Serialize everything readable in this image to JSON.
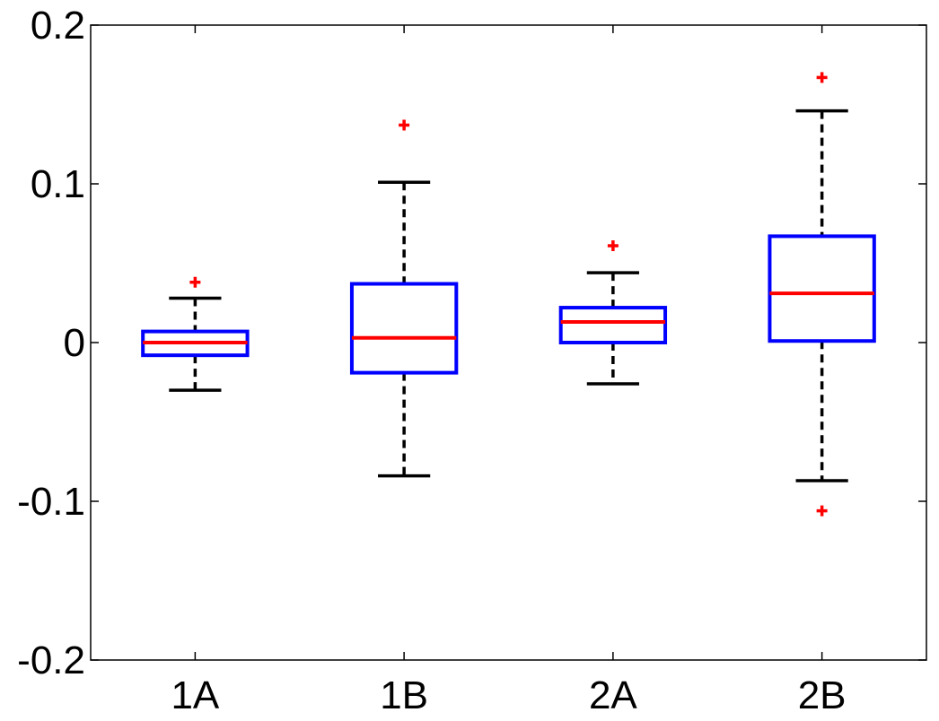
{
  "chart_data": {
    "type": "box",
    "categories": [
      "1A",
      "1B",
      "2A",
      "2B"
    ],
    "ylim": [
      -0.2,
      0.2
    ],
    "yticks": [
      -0.2,
      -0.1,
      0,
      0.1,
      0.2
    ],
    "ytick_labels": [
      "-0.2",
      "-0.1",
      "0",
      "0.1",
      "0.2"
    ],
    "grid": false,
    "boxes": [
      {
        "category": "1A",
        "whisker_low": -0.03,
        "q1": -0.008,
        "median": 0.0,
        "q3": 0.007,
        "whisker_high": 0.028,
        "outliers": [
          0.038
        ]
      },
      {
        "category": "1B",
        "whisker_low": -0.084,
        "q1": -0.019,
        "median": 0.003,
        "q3": 0.037,
        "whisker_high": 0.101,
        "outliers": [
          0.137
        ]
      },
      {
        "category": "2A",
        "whisker_low": -0.026,
        "q1": 0.0,
        "median": 0.013,
        "q3": 0.022,
        "whisker_high": 0.044,
        "outliers": [
          0.061
        ]
      },
      {
        "category": "2B",
        "whisker_low": -0.087,
        "q1": 0.001,
        "median": 0.031,
        "q3": 0.067,
        "whisker_high": 0.146,
        "outliers": [
          0.167,
          -0.106
        ]
      }
    ],
    "colors": {
      "box": "#0000ff",
      "median": "#ff0000",
      "whisker": "#000000",
      "outlier": "#ff0000",
      "axes": "#000000"
    }
  }
}
